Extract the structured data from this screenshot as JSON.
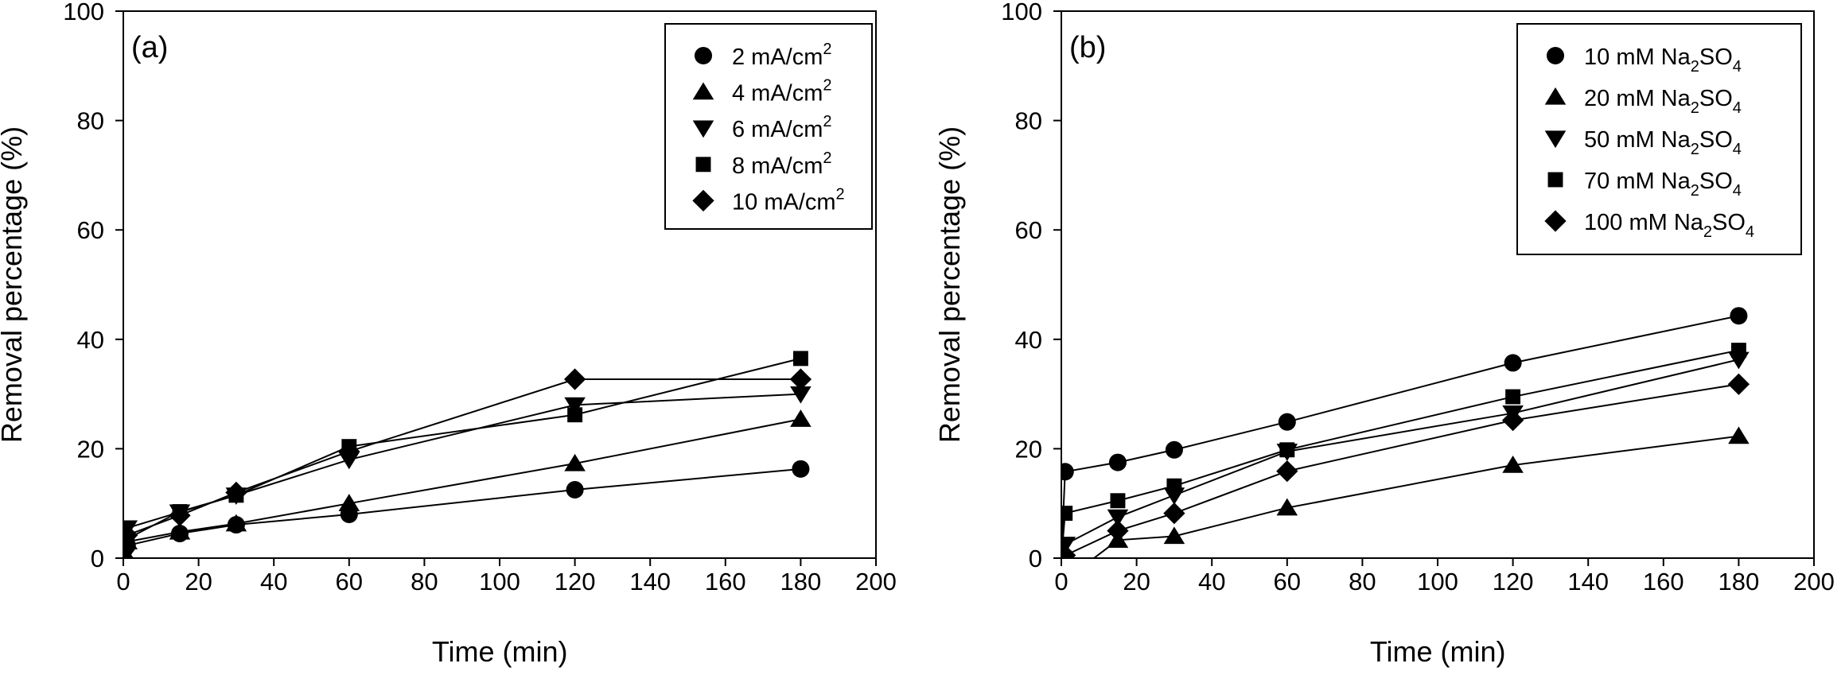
{
  "chart_data": [
    {
      "type": "line",
      "panel_label": "(a)",
      "xlabel": "Time (min)",
      "ylabel": "Removal percentage (%)",
      "xlim": [
        0,
        200
      ],
      "ylim": [
        0,
        100
      ],
      "xticks": [
        0,
        20,
        40,
        60,
        80,
        100,
        120,
        140,
        160,
        180,
        200
      ],
      "yticks": [
        0,
        20,
        40,
        60,
        80,
        100
      ],
      "grid": false,
      "legend_position": "top-right",
      "series": [
        {
          "name": "2 mA/cm2",
          "label_main": "2 mA/cm",
          "label_sup": "2",
          "label_sub": "",
          "label_end": "",
          "marker": "circle",
          "x": [
            0,
            1,
            15,
            30,
            60,
            120,
            180
          ],
          "y": [
            0,
            2.3,
            4.5,
            6.1,
            8.0,
            12.5,
            16.3
          ]
        },
        {
          "name": "4 mA/cm2",
          "label_main": "4 mA/cm",
          "label_sup": "2",
          "label_sub": "",
          "label_end": "",
          "marker": "triangle-up",
          "x": [
            0,
            1,
            15,
            30,
            60,
            120,
            180
          ],
          "y": [
            0,
            3.0,
            4.8,
            6.3,
            10.0,
            17.3,
            25.4
          ]
        },
        {
          "name": "6 mA/cm2",
          "label_main": "6 mA/cm",
          "label_sup": "2",
          "label_sub": "",
          "label_end": "",
          "marker": "triangle-down",
          "x": [
            0,
            1,
            15,
            30,
            60,
            120,
            180
          ],
          "y": [
            0,
            5.5,
            8.4,
            11.5,
            18.0,
            28.0,
            30.0
          ]
        },
        {
          "name": "8 mA/cm2",
          "label_main": "8 mA/cm",
          "label_sup": "2",
          "label_sub": "",
          "label_end": "",
          "marker": "square",
          "x": [
            0,
            1,
            15,
            30,
            60,
            120,
            180
          ],
          "y": [
            0,
            3.5,
            8.5,
            11.5,
            20.4,
            26.2,
            36.5
          ]
        },
        {
          "name": "10 mA/cm2",
          "label_main": "10 mA/cm",
          "label_sup": "2",
          "label_sub": "",
          "label_end": "",
          "marker": "diamond",
          "x": [
            0,
            1,
            15,
            30,
            60,
            120,
            180
          ],
          "y": [
            0,
            4.2,
            7.8,
            12.0,
            19.5,
            32.7,
            32.7
          ]
        }
      ]
    },
    {
      "type": "line",
      "panel_label": "(b)",
      "xlabel": "Time (min)",
      "ylabel": "Removal percentage (%)",
      "xlim": [
        0,
        200
      ],
      "ylim": [
        0,
        100
      ],
      "xticks": [
        0,
        20,
        40,
        60,
        80,
        100,
        120,
        140,
        160,
        180,
        200
      ],
      "yticks": [
        0,
        20,
        40,
        60,
        80,
        100
      ],
      "grid": false,
      "legend_position": "top-right",
      "series": [
        {
          "name": "10 mM Na2SO4",
          "label_main": "10 mM Na",
          "label_sup": "",
          "label_sub": "2",
          "label_end": "SO",
          "label_sub2": "4",
          "marker": "circle",
          "x": [
            0,
            1,
            15,
            30,
            60,
            120,
            180
          ],
          "y": [
            0,
            15.8,
            17.5,
            19.8,
            24.9,
            35.7,
            44.3
          ]
        },
        {
          "name": "20 mM Na2SO4",
          "label_main": "20 mM Na",
          "label_sup": "",
          "label_sub": "2",
          "label_end": "SO",
          "label_sub2": "4",
          "marker": "triangle-up",
          "x": [
            0,
            1,
            15,
            30,
            60,
            120,
            180
          ],
          "y": [
            0,
            -4.0,
            3.3,
            4.0,
            9.2,
            17.0,
            22.3
          ]
        },
        {
          "name": "50 mM Na2SO4",
          "label_main": "50 mM Na",
          "label_sup": "",
          "label_sub": "2",
          "label_end": "SO",
          "label_sub2": "4",
          "marker": "triangle-down",
          "x": [
            0,
            1,
            15,
            30,
            60,
            120,
            180
          ],
          "y": [
            0,
            2.5,
            7.5,
            11.5,
            19.5,
            26.5,
            36.3
          ]
        },
        {
          "name": "70 mM Na2SO4",
          "label_main": "70 mM Na",
          "label_sup": "",
          "label_sub": "2",
          "label_end": "SO",
          "label_sub2": "4",
          "marker": "square",
          "x": [
            0,
            1,
            15,
            30,
            60,
            120,
            180
          ],
          "y": [
            0,
            8.2,
            10.5,
            13.2,
            19.8,
            29.5,
            38.0
          ]
        },
        {
          "name": "100 mM Na2SO4",
          "label_main": "100 mM Na",
          "label_sup": "",
          "label_sub": "2",
          "label_end": "SO",
          "label_sub2": "4",
          "marker": "diamond",
          "x": [
            0,
            1,
            15,
            30,
            60,
            120,
            180
          ],
          "y": [
            0,
            0.5,
            5.0,
            8.2,
            15.9,
            25.2,
            31.8
          ]
        }
      ]
    }
  ]
}
